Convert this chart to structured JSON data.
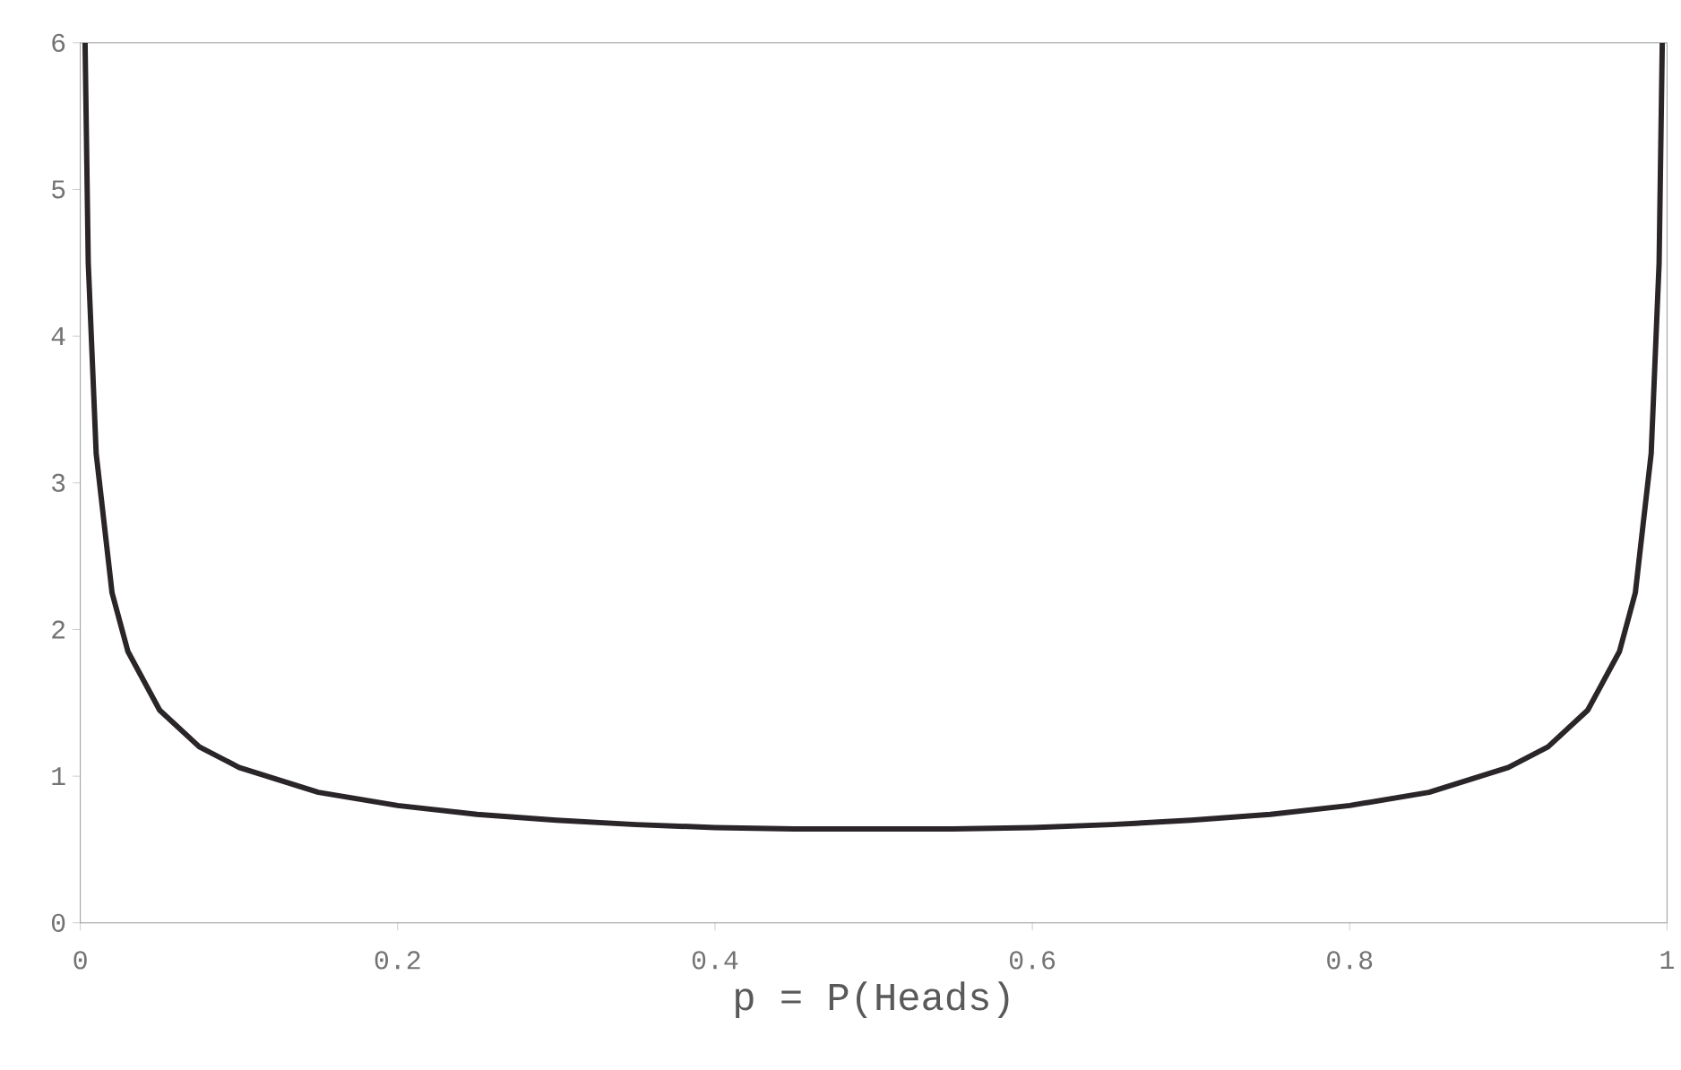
{
  "chart_data": {
    "type": "line",
    "xlabel": "p = P(Heads)",
    "x": [
      0.003,
      0.005,
      0.01,
      0.02,
      0.03,
      0.05,
      0.075,
      0.1,
      0.15,
      0.2,
      0.25,
      0.3,
      0.35,
      0.4,
      0.45,
      0.5,
      0.55,
      0.6,
      0.65,
      0.7,
      0.75,
      0.8,
      0.85,
      0.9,
      0.925,
      0.95,
      0.97,
      0.98,
      0.99,
      0.995,
      0.997
    ],
    "series": [
      {
        "color": "#2a2528",
        "values": [
          6,
          4.5,
          3.2,
          2.25,
          1.85,
          1.45,
          1.2,
          1.06,
          0.89,
          0.8,
          0.74,
          0.7,
          0.67,
          0.65,
          0.64,
          0.64,
          0.64,
          0.65,
          0.67,
          0.7,
          0.74,
          0.8,
          0.89,
          1.06,
          1.2,
          1.45,
          1.85,
          2.25,
          3.2,
          4.5,
          6
        ]
      }
    ],
    "xlim": [
      0,
      1
    ],
    "ylim": [
      0,
      6
    ],
    "xticks": [
      0,
      0.2,
      0.4,
      0.6,
      0.8,
      1
    ],
    "yticks": [
      0,
      1,
      2,
      3,
      4,
      5,
      6
    ],
    "grid": false,
    "marker": "none",
    "line_style": "solid"
  }
}
